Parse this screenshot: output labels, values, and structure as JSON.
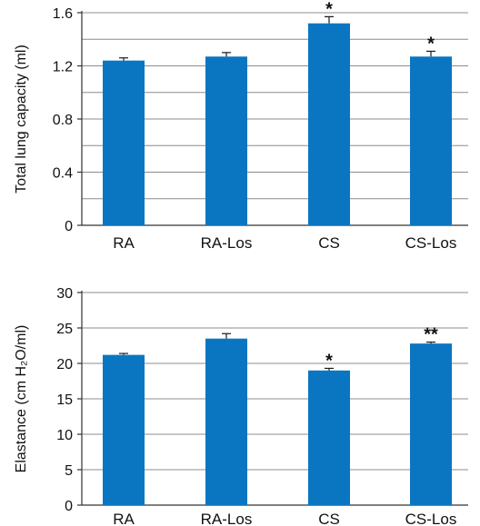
{
  "chart_data": [
    {
      "type": "bar",
      "categories": [
        "RA",
        "RA-Los",
        "CS",
        "CS-Los"
      ],
      "values": [
        1.24,
        1.27,
        1.52,
        1.27
      ],
      "errors": [
        0.02,
        0.03,
        0.05,
        0.04
      ],
      "annotations": [
        "",
        "",
        "*",
        "*"
      ],
      "title": "",
      "xlabel": "",
      "ylabel": "Total lung capacity (ml)",
      "ylim": [
        0,
        1.6
      ],
      "yticks": [
        "0",
        "0.4",
        "0.8",
        "1.2",
        "1.6"
      ],
      "grid": true,
      "bar_color": "#0a76c2"
    },
    {
      "type": "bar",
      "categories": [
        "RA",
        "RA-Los",
        "CS",
        "CS-Los"
      ],
      "values": [
        21.2,
        23.5,
        19.0,
        22.8
      ],
      "errors": [
        0.2,
        0.7,
        0.3,
        0.2
      ],
      "annotations": [
        "",
        "",
        "*",
        "**"
      ],
      "title": "",
      "xlabel": "",
      "ylabel": "Elastance (cm H₂O/ml)",
      "ylim": [
        0,
        30
      ],
      "yticks": [
        "0",
        "5",
        "10",
        "15",
        "20",
        "25",
        "30"
      ],
      "grid": true,
      "bar_color": "#0a76c2"
    }
  ]
}
